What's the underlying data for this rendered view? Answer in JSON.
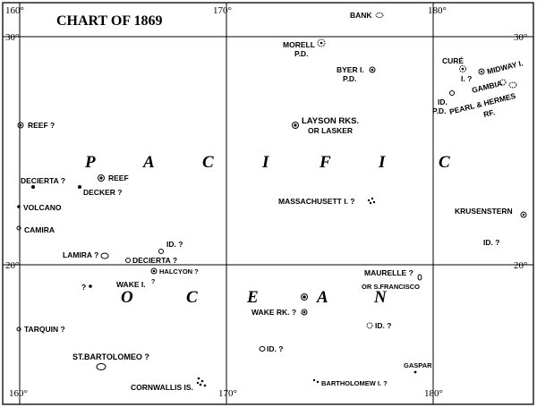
{
  "title": "CHART OF 1869",
  "longitude_labels": {
    "top": [
      "160°",
      "170°",
      "180°"
    ],
    "bottom": [
      "160°",
      "170°",
      "180°"
    ]
  },
  "latitude_labels": {
    "left": [
      "30°",
      "20°"
    ],
    "right": [
      "30°",
      "20°"
    ]
  },
  "ocean_letters": {
    "pacific": [
      "P",
      "A",
      "C",
      "I",
      "F",
      "I",
      "C"
    ],
    "ocean": [
      "O",
      "C",
      "E",
      "A",
      "N"
    ]
  },
  "features": {
    "bank": "BANK",
    "morell": "MORELL",
    "morell_pd": "P.D.",
    "byer": "BYER I.",
    "byer_pd": "P.D.",
    "cure": "CURÉ",
    "cure_q": "I. ?",
    "midway": "MIDWAY I.",
    "gambia": "GAMBIA",
    "id_pd_1": "ID.",
    "id_pd_2": "P.D.",
    "pearl_hermes": "PEARL & HERMES",
    "pearl_rf": "RF.",
    "reef_west": "REEF ?",
    "layson": "LAYSON RKS.",
    "layson_sub": "OR LASKER",
    "reef_center": "REEF",
    "decierta_west": "DECIERTA ?",
    "decker": "DECKER ?",
    "volcano": "VOLCANO",
    "camira": "CAMIRA",
    "massachusett": "MASSACHUSETT I. ?",
    "krusenstern": "KRUSENSTERN",
    "id_east": "ID. ?",
    "lamira": "LAMIRA ?",
    "id_small": "ID. ?",
    "decierta_south": "DECIERTA ?",
    "halcyon": "HALCYON ?",
    "maurelle": "MAURELLE ?",
    "maurelle_sub": "OR S.FRANCISCO",
    "q_dot": "?",
    "wake": "WAKE I.",
    "wake_q": "?",
    "wake_rk": "WAKE RK. ?",
    "id_mid": "ID. ?",
    "tarquin": "TARQUIN ?",
    "id_low": "ID. ?",
    "st_bartolomeo": "ST.BARTOLOMEO ?",
    "gaspar": "GASPAR",
    "cornwallis": "CORNWALLIS IS.",
    "bartholomew": "BARTHOLOMEW I. ?"
  }
}
